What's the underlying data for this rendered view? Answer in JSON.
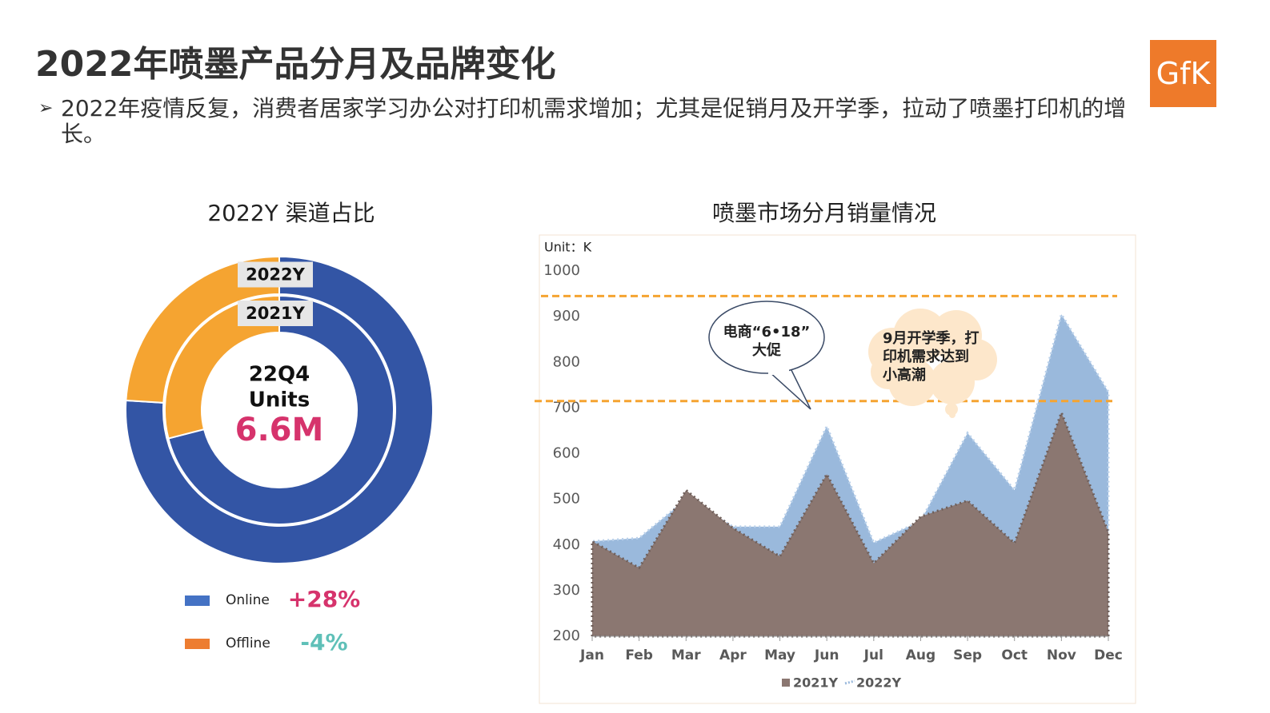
{
  "header": {
    "title": "2022年喷墨产品分月及品牌变化",
    "bullet": "2022年疫情反复，消费者居家学习办公对打印机需求增加；尤其是促销月及开学季，拉动了喷墨打印机的增长。",
    "logo": "GfK"
  },
  "chart_data": [
    {
      "type": "donut",
      "title": "2022Y 渠道占比",
      "categories": [
        "Online",
        "Offline"
      ],
      "colors": [
        "#3355a5",
        "#f5a431"
      ],
      "legend_colors": [
        "#4472c4",
        "#ed7d31"
      ],
      "series": [
        {
          "name": "2022Y",
          "values": [
            76,
            24
          ]
        },
        {
          "name": "2021Y",
          "values": [
            71,
            29
          ]
        }
      ],
      "center_text": [
        "22Q4",
        "Units"
      ],
      "center_value": "6.6M",
      "growth": {
        "values": [
          28,
          -4
        ],
        "value_labels": [
          "+28%",
          "-4%"
        ],
        "colors": [
          "#d6336c",
          "#5fc0b8"
        ]
      }
    },
    {
      "type": "area",
      "title": "喷墨市场分月销量情况",
      "unit_label": "Unit：K",
      "categories": [
        "Jan",
        "Feb",
        "Mar",
        "Apr",
        "May",
        "Jun",
        "Jul",
        "Aug",
        "Sep",
        "Oct",
        "Nov",
        "Dec"
      ],
      "series": [
        {
          "name": "2022Y",
          "color": "#9ab9dc",
          "values": [
            408,
            415,
            500,
            440,
            440,
            660,
            405,
            452,
            645,
            520,
            905,
            735
          ]
        },
        {
          "name": "2021Y",
          "color": "#8b7771",
          "values": [
            408,
            350,
            520,
            437,
            375,
            555,
            360,
            462,
            497,
            404,
            690,
            428
          ]
        }
      ],
      "ylim": [
        200,
        1000
      ],
      "yticks": [
        200,
        300,
        400,
        500,
        600,
        700,
        800,
        900,
        1000
      ],
      "reference_lines": [
        945,
        715
      ],
      "reference_color": "#f5a431",
      "annotations": [
        {
          "lines": [
            "电商“6•18”",
            "大促"
          ]
        },
        {
          "lines": [
            "9月开学季，打",
            "印机需求达到",
            "小高潮"
          ]
        }
      ]
    }
  ]
}
